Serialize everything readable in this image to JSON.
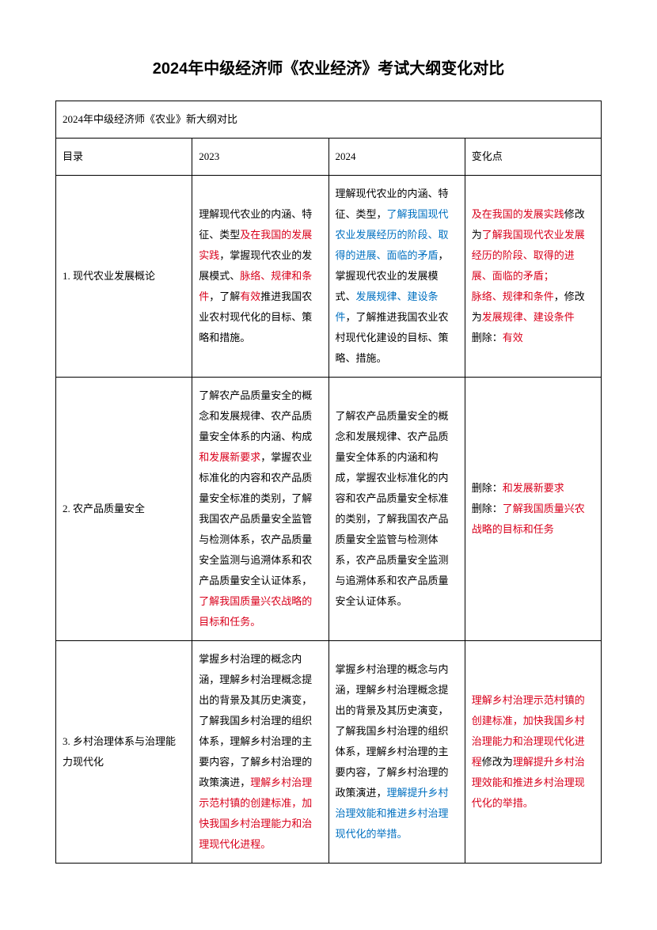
{
  "title": "2024年中级经济师《农业经济》考试大纲变化对比",
  "caption": "2024年中级经济师《农业》新大纲对比",
  "headers": {
    "h1": "目录",
    "h2": "2023",
    "h3": "2024",
    "h4": "变化点"
  },
  "rows": [
    {
      "col1": "1. 现代农业发展概论",
      "col2_parts": [
        {
          "t": "理解现代农业的内涵、特征、类型",
          "c": ""
        },
        {
          "t": "及在我国的发展实践",
          "c": "red"
        },
        {
          "t": "，掌握现代农业的发展模式、",
          "c": ""
        },
        {
          "t": "脉络、规律和条件",
          "c": "red"
        },
        {
          "t": "，了解",
          "c": ""
        },
        {
          "t": "有效",
          "c": "red"
        },
        {
          "t": "推进我国农业农村现代化的目标、策略和措施。",
          "c": ""
        }
      ],
      "col3_parts": [
        {
          "t": "理解现代农业的内涵、特征、类型，",
          "c": ""
        },
        {
          "t": "了解我国现代农业发展经历的阶段、取得的进展、面临的矛盾",
          "c": "blue"
        },
        {
          "t": "，掌握现代农业的发展模式、",
          "c": ""
        },
        {
          "t": "发展规律、建设条件",
          "c": "blue"
        },
        {
          "t": "，了解推进我国农业农村现代化建设的目标、策略、措施。",
          "c": ""
        }
      ],
      "col4_parts": [
        {
          "t": "及在我国的发展实践",
          "c": "red"
        },
        {
          "t": "修改为",
          "c": ""
        },
        {
          "t": "了解我国现代农业发展经历的阶段、取得的进展、面临的矛盾；",
          "c": "red"
        },
        {
          "t": "\n",
          "c": ""
        },
        {
          "t": "脉络、规律和条件",
          "c": "red"
        },
        {
          "t": "，修改为",
          "c": ""
        },
        {
          "t": "发展规律、建设条件",
          "c": "red"
        },
        {
          "t": "\n删除：",
          "c": ""
        },
        {
          "t": "有效",
          "c": "red"
        }
      ]
    },
    {
      "col1": "2. 农产品质量安全",
      "col2_parts": [
        {
          "t": "了解农产品质量安全的概念和发展规律、农产品质量安全体系的内涵、构成",
          "c": ""
        },
        {
          "t": "和发展新要求",
          "c": "red"
        },
        {
          "t": "，掌握农业标准化的内容和农产品质量安全标准的类别，了解我国农产品质量安全监管与检测体系，农产品质量安全监测与追溯体系和农产品质量安全认证体系，",
          "c": ""
        },
        {
          "t": "了解我国质量兴农战略的目标和任务。",
          "c": "red"
        }
      ],
      "col3_parts": [
        {
          "t": "了解农产品质量安全的概念和发展规律、农产品质量安全体系的内涵和构成，掌握农业标准化的内容和农产品质量安全标准的类别，了解我国农产品质量安全监管与检测体系，农产品质量安全监测与追溯体系和农产品质量安全认证体系。",
          "c": ""
        }
      ],
      "col4_parts": [
        {
          "t": "删除：",
          "c": ""
        },
        {
          "t": "和发展新要求",
          "c": "red"
        },
        {
          "t": "\n删除：",
          "c": ""
        },
        {
          "t": "了解我国质量兴农战略的目标和任务",
          "c": "red"
        }
      ]
    },
    {
      "col1": "3. 乡村治理体系与治理能力现代化",
      "col2_parts": [
        {
          "t": "掌握乡村治理的概念内涵，理解乡村治理概念提出的背景及其历史演变，了解我国乡村治理的组织体系，理解乡村治理的主要内容，了解乡村治理的政策演进，",
          "c": ""
        },
        {
          "t": "理解乡村治理示范村镇的创建标准，加快我国乡村治理能力和治理现代化进程。",
          "c": "red"
        }
      ],
      "col3_parts": [
        {
          "t": "掌握乡村治理的概念与内涵，理解乡村治理概念提出的背景及其历史演变，了解我国乡村治理的组织体系，理解乡村治理的主要内容，了解乡村治理的政策演进，",
          "c": ""
        },
        {
          "t": "理解提升乡村治理效能和推进乡村治理现代化的举措。",
          "c": "blue"
        }
      ],
      "col4_parts": [
        {
          "t": "理解乡村治理示范村镇的创建标准，加快我国乡村治理能力和治理现代化进程",
          "c": "red"
        },
        {
          "t": "修改为",
          "c": ""
        },
        {
          "t": "理解提升乡村治理效能和推进乡村治理现代化的举措。",
          "c": "red"
        }
      ]
    }
  ]
}
